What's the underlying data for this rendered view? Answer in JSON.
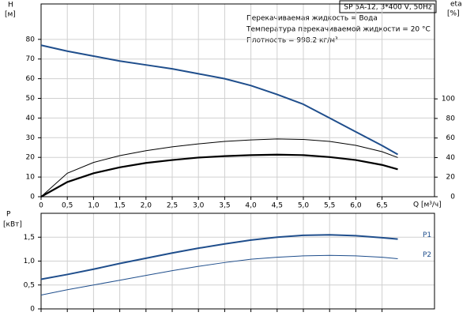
{
  "chart_data": [
    {
      "type": "line",
      "title": "SP 5A-12, 3*400 V, 50Hz",
      "annotations": [
        "Перекачиваемая жидкость = Вода",
        "Температура перекачиваемой жидкости = 20 °C",
        "Плотность = 998.2 кг/м³"
      ],
      "y_label": "H",
      "y_unit": "[м]",
      "y2_label": "eta",
      "y2_unit": "[%]",
      "x_label": "Q [м³/ч]",
      "x": [
        0,
        0.5,
        1.0,
        1.5,
        2.0,
        2.5,
        3.0,
        3.5,
        4.0,
        4.5,
        5.0,
        5.5,
        6.0,
        6.5,
        6.8
      ],
      "series": [
        {
          "color": "#1f4e8c",
          "width": 2,
          "values": [
            77,
            74,
            71.5,
            69,
            67,
            65,
            62.5,
            60,
            56.5,
            52,
            47,
            40,
            33,
            26,
            21.5
          ]
        },
        {
          "color": "#000000",
          "width": 1,
          "axis": "y2",
          "values": [
            0,
            24,
            35,
            42,
            47,
            51,
            54,
            56.5,
            58,
            59,
            58.5,
            56.5,
            52.5,
            46,
            40
          ]
        },
        {
          "color": "#000000",
          "width": 2.2,
          "axis": "y2",
          "values": [
            0,
            15,
            24,
            30,
            34.5,
            37.5,
            40,
            41.5,
            42.5,
            43,
            42.5,
            40.5,
            37.5,
            32.5,
            28
          ]
        }
      ],
      "xlim": [
        0,
        7.5
      ],
      "xticks": [
        0,
        {
          "value": 0.5,
          "label": "0,5"
        },
        {
          "value": 1.0,
          "label": "1,0"
        },
        {
          "value": 1.5,
          "label": "1,5"
        },
        {
          "value": 2.0,
          "label": "2,0"
        },
        {
          "value": 2.5,
          "label": "2,5"
        },
        {
          "value": 3.0,
          "label": "3,0"
        },
        {
          "value": 3.5,
          "label": "3,5"
        },
        {
          "value": 4.0,
          "label": "4,0"
        },
        {
          "value": 4.5,
          "label": "4,5"
        },
        {
          "value": 5.0,
          "label": "5,0"
        },
        {
          "value": 5.5,
          "label": "5,5"
        },
        {
          "value": 6.0,
          "label": "6,0"
        },
        {
          "value": 6.5,
          "label": "6,5"
        }
      ],
      "ylim": [
        0,
        98
      ],
      "yticks": [
        0,
        10,
        20,
        30,
        40,
        50,
        60,
        70,
        80
      ],
      "y2lim": [
        0,
        197
      ],
      "y2ticks": [
        0,
        20,
        40,
        60,
        80,
        100
      ],
      "grid": true
    },
    {
      "type": "line",
      "y_label": "P",
      "y_unit": "[кВт]",
      "x": [
        0,
        0.5,
        1.0,
        1.5,
        2.0,
        2.5,
        3.0,
        3.5,
        4.0,
        4.5,
        5.0,
        5.5,
        6.0,
        6.5,
        6.8
      ],
      "series": [
        {
          "name": "P1",
          "color": "#1f4e8c",
          "width": 2,
          "values": [
            0.62,
            0.72,
            0.83,
            0.95,
            1.06,
            1.17,
            1.27,
            1.36,
            1.44,
            1.5,
            1.54,
            1.55,
            1.53,
            1.49,
            1.46
          ]
        },
        {
          "name": "P2",
          "color": "#1f4e8c",
          "width": 1,
          "values": [
            0.29,
            0.4,
            0.5,
            0.6,
            0.7,
            0.8,
            0.89,
            0.97,
            1.04,
            1.08,
            1.11,
            1.12,
            1.11,
            1.08,
            1.05
          ]
        }
      ],
      "xlim": [
        0,
        7.5
      ],
      "xticks": [
        0,
        0.5,
        1.0,
        1.5,
        2.0,
        2.5,
        3.0,
        3.5,
        4.0,
        4.5,
        5.0,
        5.5,
        6.0,
        6.5
      ],
      "show_xtick_labels": false,
      "ylim": [
        0,
        2.0
      ],
      "yticks": [
        0,
        {
          "value": 0.5,
          "label": "0,5"
        },
        {
          "value": 1.0,
          "label": "1,0"
        },
        {
          "value": 1.5,
          "label": "1,5"
        }
      ],
      "grid": true
    }
  ]
}
